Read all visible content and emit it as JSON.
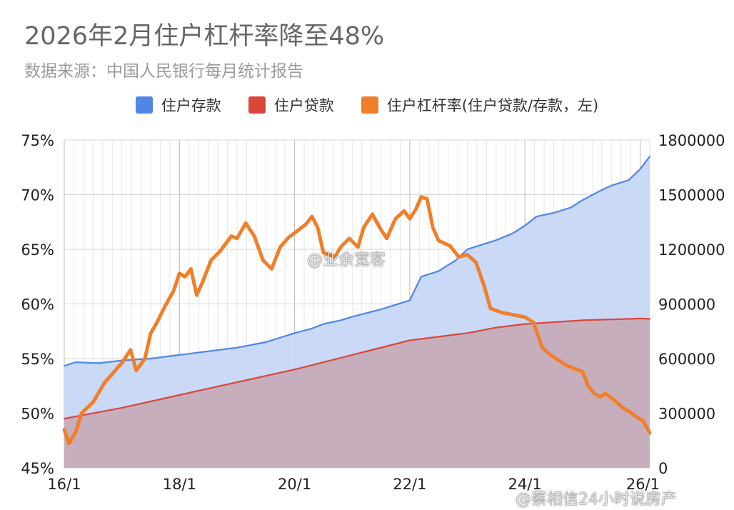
{
  "title": "2026年2月住户杠杆率降至48%",
  "subtitle": "数据来源：中国人民银行每月统计报告",
  "legend": [
    {
      "label": "住户存款",
      "color": "#4f86e8"
    },
    {
      "label": "住户贷款",
      "color": "#d9473b"
    },
    {
      "label": "住户杠杆率(住户贷款/存款，左)",
      "color": "#f07f2a"
    }
  ],
  "watermarks": [
    "@业余宽客",
    "@蔡相信24小时说房产"
  ],
  "chart_data": {
    "type": "line",
    "x_ticks": [
      "16/1",
      "18/1",
      "20/1",
      "22/1",
      "24/1",
      "26/1"
    ],
    "y_left": {
      "ticks": [
        "45%",
        "50%",
        "55%",
        "60%",
        "65%",
        "70%",
        "75%"
      ],
      "range": [
        45,
        75
      ]
    },
    "y_right": {
      "ticks": [
        "0",
        "300000",
        "600000",
        "900000",
        "1200000",
        "1500000",
        "1800000"
      ],
      "range": [
        0,
        1800000
      ]
    },
    "x_range_years": [
      2016.0,
      2026.167
    ],
    "series": [
      {
        "name": "住户存款",
        "axis": "right",
        "color": "#4f86e8",
        "fill": "#c6d7f5",
        "points": [
          [
            2016.0,
            560000
          ],
          [
            2016.2,
            580000
          ],
          [
            2016.6,
            575000
          ],
          [
            2017.0,
            590000
          ],
          [
            2017.5,
            600000
          ],
          [
            2018.0,
            620000
          ],
          [
            2018.5,
            640000
          ],
          [
            2019.0,
            660000
          ],
          [
            2019.5,
            690000
          ],
          [
            2020.0,
            740000
          ],
          [
            2020.3,
            765000
          ],
          [
            2020.5,
            790000
          ],
          [
            2020.8,
            810000
          ],
          [
            2021.0,
            830000
          ],
          [
            2021.5,
            870000
          ],
          [
            2022.0,
            920000
          ],
          [
            2022.2,
            1050000
          ],
          [
            2022.5,
            1080000
          ],
          [
            2022.8,
            1140000
          ],
          [
            2023.0,
            1200000
          ],
          [
            2023.3,
            1230000
          ],
          [
            2023.5,
            1250000
          ],
          [
            2023.8,
            1290000
          ],
          [
            2024.0,
            1330000
          ],
          [
            2024.2,
            1380000
          ],
          [
            2024.5,
            1400000
          ],
          [
            2024.8,
            1430000
          ],
          [
            2025.0,
            1470000
          ],
          [
            2025.3,
            1520000
          ],
          [
            2025.5,
            1550000
          ],
          [
            2025.8,
            1580000
          ],
          [
            2026.0,
            1640000
          ],
          [
            2026.167,
            1710000
          ]
        ]
      },
      {
        "name": "住户贷款",
        "axis": "right",
        "color": "#d9473b",
        "fill": "#c6a9b6",
        "points": [
          [
            2016.0,
            270000
          ],
          [
            2017.0,
            330000
          ],
          [
            2018.0,
            400000
          ],
          [
            2019.0,
            470000
          ],
          [
            2020.0,
            540000
          ],
          [
            2021.0,
            620000
          ],
          [
            2022.0,
            700000
          ],
          [
            2023.0,
            740000
          ],
          [
            2023.5,
            770000
          ],
          [
            2024.0,
            790000
          ],
          [
            2024.5,
            800000
          ],
          [
            2025.0,
            810000
          ],
          [
            2025.5,
            815000
          ],
          [
            2026.0,
            820000
          ],
          [
            2026.167,
            818000
          ]
        ]
      },
      {
        "name": "住户杠杆率(住户贷款/存款，左)",
        "axis": "left",
        "color": "#f07f2a",
        "points": [
          [
            2016.0,
            48.5
          ],
          [
            2016.08,
            47.2
          ],
          [
            2016.2,
            48.3
          ],
          [
            2016.3,
            50.0
          ],
          [
            2016.5,
            51.0
          ],
          [
            2016.7,
            52.8
          ],
          [
            2016.9,
            54.0
          ],
          [
            2017.0,
            54.6
          ],
          [
            2017.15,
            55.8
          ],
          [
            2017.25,
            53.9
          ],
          [
            2017.4,
            55.0
          ],
          [
            2017.5,
            57.3
          ],
          [
            2017.6,
            58.2
          ],
          [
            2017.75,
            59.8
          ],
          [
            2017.9,
            61.2
          ],
          [
            2018.0,
            62.8
          ],
          [
            2018.1,
            62.5
          ],
          [
            2018.2,
            63.2
          ],
          [
            2018.3,
            60.8
          ],
          [
            2018.4,
            62.0
          ],
          [
            2018.55,
            64.0
          ],
          [
            2018.7,
            64.8
          ],
          [
            2018.9,
            66.2
          ],
          [
            2019.0,
            66.0
          ],
          [
            2019.15,
            67.4
          ],
          [
            2019.3,
            66.2
          ],
          [
            2019.45,
            64.0
          ],
          [
            2019.6,
            63.2
          ],
          [
            2019.75,
            65.2
          ],
          [
            2019.9,
            66.1
          ],
          [
            2020.0,
            66.5
          ],
          [
            2020.2,
            67.3
          ],
          [
            2020.3,
            68.0
          ],
          [
            2020.4,
            67.0
          ],
          [
            2020.5,
            64.7
          ],
          [
            2020.7,
            64.3
          ],
          [
            2020.8,
            65.2
          ],
          [
            2020.95,
            66.0
          ],
          [
            2021.1,
            65.2
          ],
          [
            2021.2,
            67.0
          ],
          [
            2021.35,
            68.2
          ],
          [
            2021.5,
            66.8
          ],
          [
            2021.6,
            66.0
          ],
          [
            2021.75,
            67.8
          ],
          [
            2021.9,
            68.5
          ],
          [
            2022.0,
            67.8
          ],
          [
            2022.1,
            68.6
          ],
          [
            2022.2,
            69.8
          ],
          [
            2022.3,
            69.6
          ],
          [
            2022.4,
            67.0
          ],
          [
            2022.5,
            65.8
          ],
          [
            2022.7,
            65.3
          ],
          [
            2022.85,
            64.3
          ],
          [
            2023.0,
            64.5
          ],
          [
            2023.15,
            63.8
          ],
          [
            2023.3,
            61.5
          ],
          [
            2023.4,
            59.6
          ],
          [
            2023.6,
            59.2
          ],
          [
            2023.8,
            59.0
          ],
          [
            2024.0,
            58.8
          ],
          [
            2024.15,
            58.3
          ],
          [
            2024.3,
            56.0
          ],
          [
            2024.45,
            55.3
          ],
          [
            2024.6,
            54.8
          ],
          [
            2024.75,
            54.3
          ],
          [
            2024.9,
            54.0
          ],
          [
            2025.0,
            53.8
          ],
          [
            2025.1,
            52.5
          ],
          [
            2025.2,
            51.8
          ],
          [
            2025.3,
            51.5
          ],
          [
            2025.4,
            51.8
          ],
          [
            2025.55,
            51.2
          ],
          [
            2025.7,
            50.5
          ],
          [
            2025.8,
            50.2
          ],
          [
            2025.95,
            49.6
          ],
          [
            2026.05,
            49.3
          ],
          [
            2026.167,
            48.2
          ]
        ]
      }
    ],
    "grid": true,
    "legend_position": "top"
  }
}
